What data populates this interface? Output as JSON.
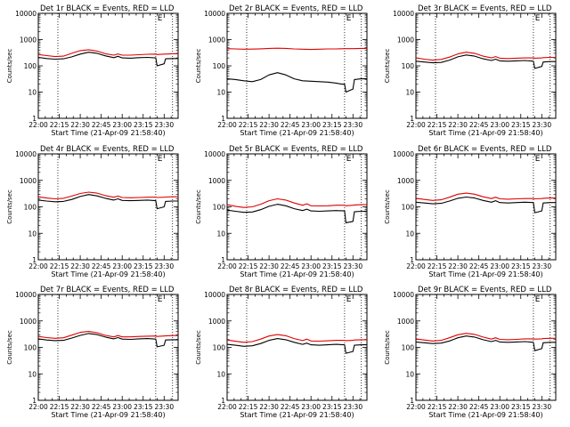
{
  "figure": {
    "ylabel": "Counts/sec",
    "xlabel": "Start Time (21-Apr-09 21:58:40)",
    "series_colors": {
      "events": "#000000",
      "lld": "#e00000"
    },
    "grid": false,
    "xtick_labels": [
      "22:00",
      "22:15",
      "22:30",
      "22:45",
      "23:00",
      "23:15",
      "23:30"
    ],
    "ytick_labels": [
      "1",
      "10",
      "100",
      "1000",
      "10000"
    ],
    "marker_letter": "E"
  },
  "chart_data": [
    {
      "type": "line",
      "title": "Det 1r BLACK = Events, RED = LLD",
      "xlim": [
        0,
        100
      ],
      "ylim": [
        1,
        10000
      ],
      "yscale": "log",
      "vlines_min": [
        14,
        84,
        96
      ],
      "marker_min": 87,
      "series": [
        {
          "key": "events",
          "x": [
            0,
            6,
            12,
            18,
            24,
            30,
            36,
            42,
            48,
            54,
            57,
            60,
            66,
            72,
            78,
            84,
            85,
            90,
            91,
            96,
            100
          ],
          "values": [
            210,
            190,
            180,
            185,
            220,
            280,
            330,
            300,
            240,
            205,
            230,
            200,
            195,
            205,
            210,
            200,
            100,
            120,
            185,
            190,
            190
          ]
        },
        {
          "key": "lld",
          "x": [
            0,
            6,
            12,
            18,
            24,
            30,
            36,
            42,
            48,
            54,
            57,
            60,
            66,
            72,
            78,
            84,
            85,
            90,
            91,
            96,
            100
          ],
          "values": [
            270,
            245,
            225,
            235,
            300,
            380,
            410,
            365,
            290,
            255,
            285,
            255,
            255,
            265,
            275,
            280,
            270,
            280,
            280,
            290,
            290
          ]
        }
      ]
    },
    {
      "type": "line",
      "title": "Det 2r BLACK = Events, RED = LLD",
      "xlim": [
        0,
        100
      ],
      "ylim": [
        1,
        10000
      ],
      "yscale": "log",
      "vlines_min": [
        14,
        84,
        96
      ],
      "marker_min": 87,
      "series": [
        {
          "key": "events",
          "x": [
            0,
            6,
            12,
            18,
            24,
            30,
            36,
            42,
            48,
            54,
            60,
            66,
            72,
            78,
            82,
            84,
            85,
            90,
            91,
            96,
            100
          ],
          "values": [
            32,
            30,
            27,
            25,
            30,
            45,
            55,
            45,
            32,
            27,
            26,
            25,
            24,
            22,
            20,
            20,
            10,
            13,
            30,
            32,
            32
          ]
        },
        {
          "key": "lld",
          "x": [
            0,
            6,
            12,
            18,
            24,
            30,
            36,
            42,
            48,
            54,
            60,
            66,
            72,
            78,
            84,
            90,
            96,
            100
          ],
          "values": [
            450,
            440,
            430,
            435,
            445,
            460,
            470,
            460,
            440,
            430,
            420,
            430,
            440,
            440,
            450,
            450,
            460,
            460
          ]
        }
      ]
    },
    {
      "type": "line",
      "title": "Det 3r BLACK = Events, RED = LLD",
      "xlim": [
        0,
        100
      ],
      "ylim": [
        1,
        10000
      ],
      "yscale": "log",
      "vlines_min": [
        14,
        84,
        96
      ],
      "marker_min": 87,
      "series": [
        {
          "key": "events",
          "x": [
            0,
            6,
            12,
            18,
            24,
            30,
            36,
            42,
            48,
            54,
            57,
            60,
            66,
            72,
            78,
            84,
            85,
            90,
            91,
            96,
            100
          ],
          "values": [
            150,
            140,
            130,
            135,
            165,
            220,
            260,
            235,
            185,
            160,
            180,
            155,
            150,
            155,
            160,
            150,
            80,
            95,
            140,
            145,
            145
          ]
        },
        {
          "key": "lld",
          "x": [
            0,
            6,
            12,
            18,
            24,
            30,
            36,
            42,
            48,
            54,
            57,
            60,
            66,
            72,
            78,
            84,
            85,
            90,
            91,
            96,
            100
          ],
          "values": [
            200,
            180,
            165,
            175,
            215,
            285,
            330,
            300,
            235,
            200,
            225,
            195,
            190,
            195,
            200,
            200,
            195,
            200,
            205,
            210,
            210
          ]
        }
      ]
    },
    {
      "type": "line",
      "title": "Det 4r BLACK = Events, RED = LLD",
      "xlim": [
        0,
        100
      ],
      "ylim": [
        1,
        10000
      ],
      "yscale": "log",
      "vlines_min": [
        14,
        84,
        96
      ],
      "marker_min": 87,
      "series": [
        {
          "key": "events",
          "x": [
            0,
            6,
            12,
            18,
            24,
            30,
            36,
            42,
            48,
            54,
            57,
            60,
            66,
            72,
            78,
            84,
            85,
            90,
            91,
            96,
            100
          ],
          "values": [
            180,
            165,
            155,
            160,
            190,
            245,
            290,
            260,
            210,
            180,
            200,
            175,
            170,
            175,
            180,
            170,
            85,
            100,
            160,
            165,
            165
          ]
        },
        {
          "key": "lld",
          "x": [
            0,
            6,
            12,
            18,
            24,
            30,
            36,
            42,
            48,
            54,
            57,
            60,
            66,
            72,
            78,
            84,
            85,
            90,
            91,
            96,
            100
          ],
          "values": [
            240,
            215,
            200,
            210,
            255,
            320,
            360,
            330,
            265,
            230,
            255,
            225,
            220,
            225,
            230,
            235,
            225,
            230,
            235,
            240,
            240
          ]
        }
      ]
    },
    {
      "type": "line",
      "title": "Det 5r BLACK = Events, RED = LLD",
      "xlim": [
        0,
        100
      ],
      "ylim": [
        1,
        10000
      ],
      "yscale": "log",
      "vlines_min": [
        14,
        84,
        96
      ],
      "marker_min": 87,
      "series": [
        {
          "key": "events",
          "x": [
            0,
            6,
            12,
            18,
            24,
            30,
            36,
            42,
            48,
            54,
            57,
            60,
            66,
            72,
            78,
            84,
            85,
            90,
            91,
            96,
            100
          ],
          "values": [
            75,
            68,
            62,
            64,
            78,
            105,
            125,
            110,
            85,
            72,
            82,
            70,
            68,
            70,
            72,
            70,
            25,
            28,
            65,
            68,
            68
          ]
        },
        {
          "key": "lld",
          "x": [
            0,
            6,
            12,
            18,
            24,
            30,
            36,
            42,
            48,
            54,
            57,
            60,
            66,
            72,
            78,
            84,
            85,
            90,
            91,
            96,
            100
          ],
          "values": [
            120,
            105,
            95,
            100,
            125,
            170,
            200,
            180,
            140,
            115,
            130,
            110,
            108,
            110,
            115,
            115,
            110,
            115,
            118,
            120,
            120
          ]
        }
      ]
    },
    {
      "type": "line",
      "title": "Det 6r BLACK = Events, RED = LLD",
      "xlim": [
        0,
        100
      ],
      "ylim": [
        1,
        10000
      ],
      "yscale": "log",
      "vlines_min": [
        14,
        84,
        96
      ],
      "marker_min": 87,
      "series": [
        {
          "key": "events",
          "x": [
            0,
            6,
            12,
            18,
            24,
            30,
            36,
            42,
            48,
            54,
            57,
            60,
            66,
            72,
            78,
            84,
            85,
            90,
            91,
            96,
            100
          ],
          "values": [
            150,
            140,
            130,
            135,
            165,
            210,
            235,
            215,
            175,
            150,
            170,
            145,
            140,
            145,
            150,
            145,
            60,
            70,
            140,
            145,
            145
          ]
        },
        {
          "key": "lld",
          "x": [
            0,
            6,
            12,
            18,
            24,
            30,
            36,
            42,
            48,
            54,
            57,
            60,
            66,
            72,
            78,
            84,
            85,
            90,
            91,
            96,
            100
          ],
          "values": [
            210,
            190,
            175,
            185,
            230,
            300,
            330,
            300,
            240,
            205,
            230,
            200,
            195,
            200,
            205,
            205,
            200,
            205,
            210,
            215,
            215
          ]
        }
      ]
    },
    {
      "type": "line",
      "title": "Det 7r BLACK = Events, RED = LLD",
      "xlim": [
        0,
        100
      ],
      "ylim": [
        1,
        10000
      ],
      "yscale": "log",
      "vlines_min": [
        14,
        84,
        96
      ],
      "marker_min": 87,
      "series": [
        {
          "key": "events",
          "x": [
            0,
            6,
            12,
            18,
            24,
            30,
            36,
            42,
            48,
            54,
            57,
            60,
            66,
            72,
            78,
            84,
            85,
            90,
            91,
            96,
            100
          ],
          "values": [
            210,
            190,
            180,
            185,
            225,
            285,
            335,
            305,
            245,
            210,
            235,
            205,
            200,
            210,
            215,
            205,
            105,
            120,
            190,
            195,
            195
          ]
        },
        {
          "key": "lld",
          "x": [
            0,
            6,
            12,
            18,
            24,
            30,
            36,
            42,
            48,
            54,
            57,
            60,
            66,
            72,
            78,
            84,
            85,
            90,
            91,
            96,
            100
          ],
          "values": [
            260,
            235,
            220,
            230,
            290,
            370,
            400,
            360,
            285,
            250,
            280,
            250,
            250,
            260,
            265,
            270,
            260,
            270,
            272,
            280,
            280
          ]
        }
      ]
    },
    {
      "type": "line",
      "title": "Det 8r BLACK = Events, RED = LLD",
      "xlim": [
        0,
        100
      ],
      "ylim": [
        1,
        10000
      ],
      "yscale": "log",
      "vlines_min": [
        14,
        84,
        96
      ],
      "marker_min": 87,
      "series": [
        {
          "key": "events",
          "x": [
            0,
            6,
            12,
            18,
            24,
            30,
            36,
            42,
            48,
            54,
            57,
            60,
            66,
            72,
            78,
            84,
            85,
            90,
            91,
            96,
            100
          ],
          "values": [
            130,
            120,
            110,
            115,
            140,
            185,
            215,
            195,
            155,
            130,
            145,
            125,
            120,
            125,
            130,
            125,
            60,
            70,
            120,
            125,
            125
          ]
        },
        {
          "key": "lld",
          "x": [
            0,
            6,
            12,
            18,
            24,
            30,
            36,
            42,
            48,
            54,
            57,
            60,
            66,
            72,
            78,
            84,
            85,
            90,
            91,
            96,
            100
          ],
          "values": [
            190,
            170,
            155,
            165,
            205,
            270,
            305,
            275,
            215,
            180,
            205,
            175,
            172,
            178,
            185,
            185,
            180,
            185,
            190,
            195,
            195
          ]
        }
      ]
    },
    {
      "type": "line",
      "title": "Det 9r BLACK = Events, RED = LLD",
      "xlim": [
        0,
        100
      ],
      "ylim": [
        1,
        10000
      ],
      "yscale": "log",
      "vlines_min": [
        14,
        84,
        96
      ],
      "marker_min": 87,
      "series": [
        {
          "key": "events",
          "x": [
            0,
            6,
            12,
            18,
            24,
            30,
            36,
            42,
            48,
            54,
            57,
            60,
            66,
            72,
            78,
            84,
            85,
            90,
            91,
            96,
            100
          ],
          "values": [
            160,
            150,
            140,
            145,
            175,
            230,
            270,
            245,
            195,
            165,
            185,
            160,
            155,
            160,
            165,
            155,
            75,
            90,
            150,
            155,
            155
          ]
        },
        {
          "key": "lld",
          "x": [
            0,
            6,
            12,
            18,
            24,
            30,
            36,
            42,
            48,
            54,
            57,
            60,
            66,
            72,
            78,
            84,
            85,
            90,
            91,
            96,
            100
          ],
          "values": [
            210,
            190,
            175,
            185,
            230,
            300,
            340,
            310,
            245,
            205,
            230,
            200,
            195,
            200,
            210,
            210,
            205,
            210,
            215,
            220,
            220
          ]
        }
      ]
    }
  ]
}
